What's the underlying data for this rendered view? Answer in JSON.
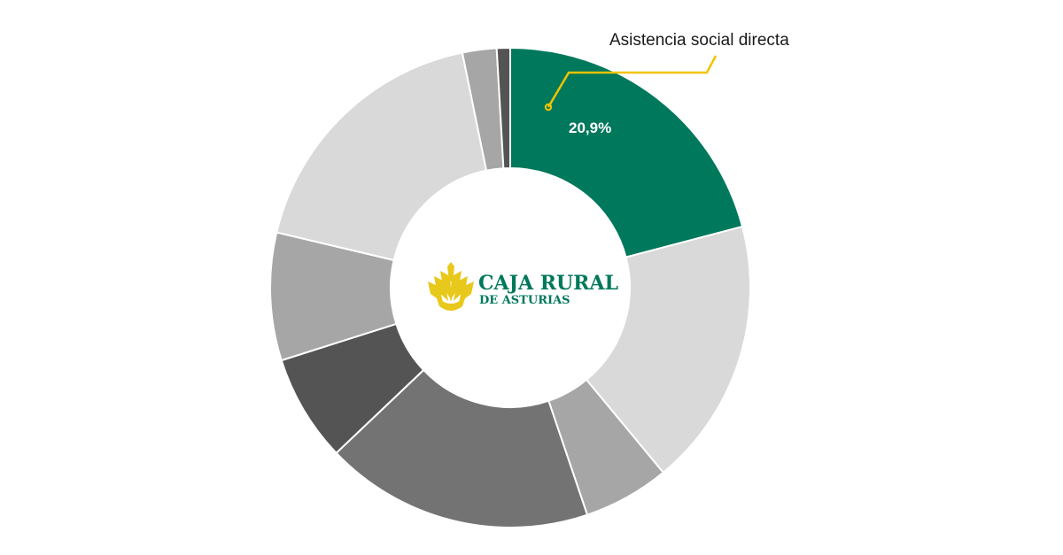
{
  "colors": {
    "highlight": "#00785c",
    "leader_line": "#f2c400",
    "logo_green": "#00785c",
    "logo_wheat": "#e8c81a",
    "label_text": "#1a1a1a",
    "value_text": "#ffffff"
  },
  "chart_data": {
    "type": "pie",
    "variant": "donut",
    "title": "",
    "legend": "none",
    "slices": [
      {
        "label": "Asistencia social directa",
        "value": 20.9,
        "color": "#00785c",
        "value_label": "20,9%",
        "highlight": true
      },
      {
        "value": 18.1,
        "color": "#d9d9d9"
      },
      {
        "value": 5.8,
        "color": "#a6a6a6"
      },
      {
        "value": 18.1,
        "color": "#737373"
      },
      {
        "value": 7.2,
        "color": "#545454"
      },
      {
        "value": 8.6,
        "color": "#a6a6a6"
      },
      {
        "value": 18.1,
        "color": "#d9d9d9"
      },
      {
        "value": 2.3,
        "color": "#a6a6a6"
      },
      {
        "value": 0.9,
        "color": "#545454"
      }
    ]
  },
  "logo": {
    "name": "wheat-logo",
    "title": "CAJA RURAL",
    "subtitle": "DE ASTURIAS"
  }
}
